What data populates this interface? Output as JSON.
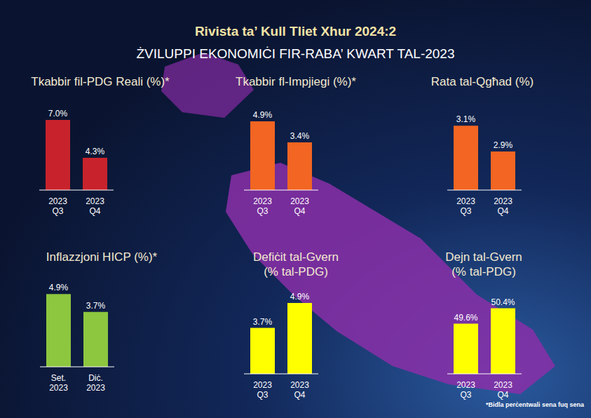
{
  "title": "Rivista ta’ Kull Tliet Xhur 2024:2",
  "subtitle": "ŻVILUPPI EKONOMIĊI FIR-RABA’ KWART TAL-2023",
  "footnote": "*Bidla perċentwali sena fuq sena",
  "chart_data": [
    {
      "type": "bar",
      "title": "Tkabbir fil-PDG Reali (%)*",
      "categories": [
        "2023 Q3",
        "2023 Q4"
      ],
      "values": [
        7.0,
        4.3
      ],
      "value_labels": [
        "7.0%",
        "4.3%"
      ],
      "color": "#c8232c",
      "ylim": [
        2,
        7.5
      ],
      "data_labels": true,
      "tick_labels": "x"
    },
    {
      "type": "bar",
      "title": "Tkabbir fl-Impjiegi (%)*",
      "categories": [
        "2023 Q3",
        "2023 Q4"
      ],
      "values": [
        4.9,
        3.4
      ],
      "value_labels": [
        "4.9%",
        "3.4%"
      ],
      "color": "#f26522",
      "ylim": [
        0,
        5.5
      ],
      "data_labels": true,
      "tick_labels": "x"
    },
    {
      "type": "bar",
      "title": "Rata tal-Qgħad (%)",
      "categories": [
        "2023 Q3",
        "2023 Q4"
      ],
      "values": [
        3.1,
        2.9
      ],
      "value_labels": [
        "3.1%",
        "2.9%"
      ],
      "color": "#f26522",
      "ylim": [
        2.6,
        3.2
      ],
      "data_labels": true,
      "tick_labels": "x"
    },
    {
      "type": "bar",
      "title": "Inflazzjoni HICP (%)*",
      "categories": [
        "Set. 2023",
        "Diċ. 2023"
      ],
      "values": [
        4.9,
        3.7
      ],
      "value_labels": [
        "4.9%",
        "3.7%"
      ],
      "color": "#8dc63f",
      "ylim": [
        0,
        5.2
      ],
      "data_labels": true,
      "tick_labels": "x"
    },
    {
      "type": "bar",
      "title": "Defiċit tal-Gvern (% tal-PDG)",
      "categories": [
        "2023 Q3",
        "2023 Q4"
      ],
      "values": [
        3.7,
        4.9
      ],
      "value_labels": [
        "3.7%",
        "4.9%"
      ],
      "color": "#ffff00",
      "ylim": [
        1.5,
        5.2
      ],
      "data_labels": true,
      "tick_labels": "x"
    },
    {
      "type": "bar",
      "title": "Dejn tal-Gvern (% tal-PDG)",
      "categories": [
        "2023 Q3",
        "2023 Q4"
      ],
      "values": [
        49.6,
        50.4
      ],
      "value_labels": [
        "49.6%",
        "50.4%"
      ],
      "color": "#ffff00",
      "ylim": [
        47,
        51
      ],
      "data_labels": true,
      "tick_labels": "x"
    }
  ]
}
